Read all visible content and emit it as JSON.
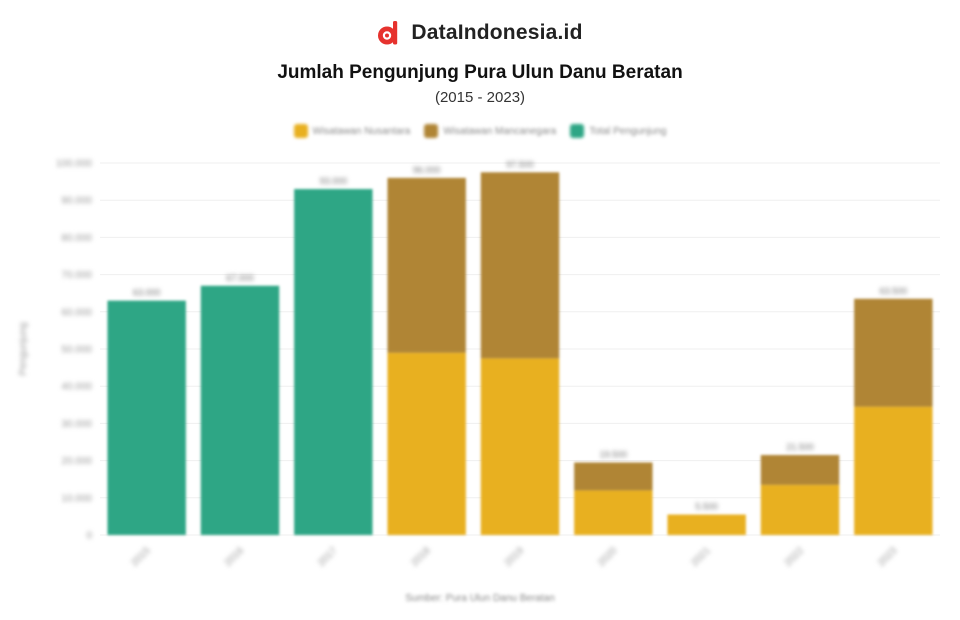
{
  "brand": {
    "name": "DataIndonesia.id",
    "logo_color": "#e6322e"
  },
  "chart_data": {
    "type": "bar",
    "stacked": true,
    "title": "Jumlah Pengunjung Pura Ulun Danu Beratan",
    "subtitle": "(2015 - 2023)",
    "xlabel": "",
    "ylabel": "Pengunjung",
    "ylim": [
      0,
      100000
    ],
    "yticks": [
      0,
      10000,
      20000,
      30000,
      40000,
      50000,
      60000,
      70000,
      80000,
      90000,
      100000
    ],
    "ytick_labels": [
      "0",
      "10.000",
      "20.000",
      "30.000",
      "40.000",
      "50.000",
      "60.000",
      "70.000",
      "80.000",
      "90.000",
      "100.000"
    ],
    "grid": true,
    "legend_position": "top-center",
    "categories": [
      "2015",
      "2016",
      "2017",
      "2018",
      "2019",
      "2020",
      "2021",
      "2022",
      "2023"
    ],
    "series": [
      {
        "name": "Wisatawan Nusantara",
        "color": "#e8b020",
        "values": [
          0,
          0,
          0,
          49000,
          47500,
          12000,
          5500,
          13500,
          34500
        ]
      },
      {
        "name": "Wisatawan Mancanegara",
        "color": "#b08535",
        "values": [
          0,
          0,
          0,
          47000,
          50000,
          7500,
          0,
          8000,
          29000
        ]
      },
      {
        "name": "Total Pengunjung",
        "color": "#2ea685",
        "values": [
          63000,
          67000,
          93000,
          0,
          0,
          0,
          0,
          0,
          0
        ]
      }
    ],
    "totals": [
      63000,
      67000,
      93000,
      96000,
      97500,
      19500,
      5500,
      21500,
      63500
    ]
  },
  "source": "Sumber: Pura Ulun Danu Beratan"
}
